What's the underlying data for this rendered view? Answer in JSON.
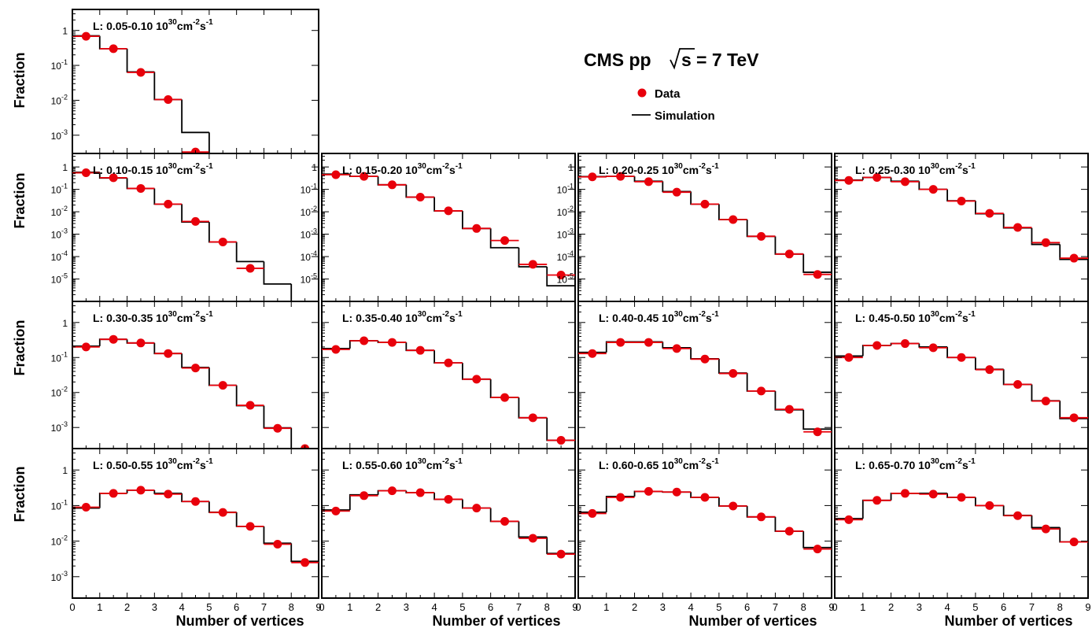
{
  "header": {
    "title_main": "CMS pp",
    "title_sqrt": "s",
    "title_energy": "= 7 TeV",
    "legend_data": "Data",
    "legend_sim": "Simulation"
  },
  "axes": {
    "ylabel": "Fraction",
    "xlabel": "Number of vertices",
    "x_ticks": [
      "0",
      "1",
      "2",
      "3",
      "4",
      "5",
      "6",
      "7",
      "8",
      "9"
    ]
  },
  "colors": {
    "data": "#e8000b",
    "simulation": "#000000"
  },
  "chart_data": [
    {
      "type": "histogram",
      "label": "0.05-0.10",
      "xlim": [
        0,
        9
      ],
      "ylim": [
        0.0003,
        4
      ],
      "ytick_labels": [
        "1",
        "10^-1",
        "10^-2",
        "10^-3"
      ],
      "data": [
        [
          0.5,
          0.68
        ],
        [
          1.5,
          0.3
        ],
        [
          2.5,
          0.063
        ],
        [
          3.5,
          0.0105
        ],
        [
          4.5,
          0.00033
        ]
      ],
      "simulation": [
        0.7,
        0.3,
        0.065,
        0.0105,
        0.0012,
        0,
        0,
        0,
        0
      ]
    },
    {
      "type": "histogram",
      "label": "0.10-0.15",
      "xlim": [
        0,
        9
      ],
      "ylim": [
        1e-06,
        4
      ],
      "ytick_labels": [
        "1",
        "10^-1",
        "10^-2",
        "10^-3",
        "10^-4",
        "10^-5"
      ],
      "data": [
        [
          0.5,
          0.55
        ],
        [
          1.5,
          0.33
        ],
        [
          2.5,
          0.11
        ],
        [
          3.5,
          0.022
        ],
        [
          4.5,
          0.0037
        ],
        [
          5.5,
          0.00045
        ],
        [
          6.5,
          3e-05
        ]
      ],
      "simulation": [
        0.58,
        0.32,
        0.11,
        0.022,
        0.0035,
        0.00045,
        6e-05,
        6e-06,
        0
      ]
    },
    {
      "type": "histogram",
      "label": "0.15-0.20",
      "xlim": [
        0,
        9
      ],
      "ylim": [
        1e-06,
        4
      ],
      "ytick_labels": [
        "1",
        "10^-1",
        "10^-2",
        "10^-3",
        "10^-4",
        "10^-5"
      ],
      "data": [
        [
          0.5,
          0.45
        ],
        [
          1.5,
          0.38
        ],
        [
          2.5,
          0.16
        ],
        [
          3.5,
          0.045
        ],
        [
          4.5,
          0.011
        ],
        [
          5.5,
          0.0018
        ],
        [
          6.5,
          0.00052
        ],
        [
          7.5,
          4.5e-05
        ],
        [
          8.5,
          1.5e-05
        ]
      ],
      "simulation": [
        0.48,
        0.38,
        0.16,
        0.045,
        0.011,
        0.0018,
        0.00025,
        3.5e-05,
        5e-06
      ]
    },
    {
      "type": "histogram",
      "label": "0.20-0.25",
      "xlim": [
        0,
        9
      ],
      "ylim": [
        1e-06,
        4
      ],
      "ytick_labels": [
        "1",
        "10^-1",
        "10^-2",
        "10^-3",
        "10^-4",
        "10^-5"
      ],
      "data": [
        [
          0.5,
          0.36
        ],
        [
          1.5,
          0.38
        ],
        [
          2.5,
          0.22
        ],
        [
          3.5,
          0.075
        ],
        [
          4.5,
          0.022
        ],
        [
          5.5,
          0.0045
        ],
        [
          6.5,
          0.0008
        ],
        [
          7.5,
          0.00013
        ],
        [
          8.5,
          1.6e-05
        ]
      ],
      "simulation": [
        0.37,
        0.38,
        0.23,
        0.08,
        0.022,
        0.0045,
        0.0008,
        0.00013,
        2e-05
      ]
    },
    {
      "type": "histogram",
      "label": "0.25-0.30",
      "xlim": [
        0,
        9
      ],
      "ylim": [
        1e-06,
        4
      ],
      "ytick_labels": [],
      "data": [
        [
          0.5,
          0.25
        ],
        [
          1.5,
          0.34
        ],
        [
          2.5,
          0.22
        ],
        [
          3.5,
          0.1
        ],
        [
          4.5,
          0.03
        ],
        [
          5.5,
          0.0085
        ],
        [
          6.5,
          0.002
        ],
        [
          7.5,
          0.00042
        ],
        [
          8.5,
          8.5e-05
        ]
      ],
      "simulation": [
        0.26,
        0.34,
        0.23,
        0.1,
        0.031,
        0.0082,
        0.0019,
        0.00035,
        7.5e-05
      ]
    },
    {
      "type": "histogram",
      "label": "0.30-0.35",
      "xlim": [
        0,
        9
      ],
      "ylim": [
        0.00025,
        4
      ],
      "ytick_labels": [
        "1",
        "10^-1",
        "10^-2",
        "10^-3"
      ],
      "data": [
        [
          0.5,
          0.2
        ],
        [
          1.5,
          0.33
        ],
        [
          2.5,
          0.26
        ],
        [
          3.5,
          0.13
        ],
        [
          4.5,
          0.05
        ],
        [
          5.5,
          0.016
        ],
        [
          6.5,
          0.0043
        ],
        [
          7.5,
          0.00095
        ],
        [
          8.5,
          0.00025
        ]
      ],
      "simulation": [
        0.21,
        0.33,
        0.26,
        0.13,
        0.052,
        0.016,
        0.0042,
        0.00098,
        0.00018
      ]
    },
    {
      "type": "histogram",
      "label": "0.35-0.40",
      "xlim": [
        0,
        9
      ],
      "ylim": [
        0.00025,
        4
      ],
      "ytick_labels": [],
      "data": [
        [
          0.5,
          0.17
        ],
        [
          1.5,
          0.3
        ],
        [
          2.5,
          0.27
        ],
        [
          3.5,
          0.16
        ],
        [
          4.5,
          0.07
        ],
        [
          5.5,
          0.024
        ],
        [
          6.5,
          0.0072
        ],
        [
          7.5,
          0.0019
        ],
        [
          8.5,
          0.00043
        ]
      ],
      "simulation": [
        0.18,
        0.3,
        0.27,
        0.16,
        0.07,
        0.024,
        0.0072,
        0.0019,
        0.00043
      ]
    },
    {
      "type": "histogram",
      "label": "0.40-0.45",
      "xlim": [
        0,
        9
      ],
      "ylim": [
        0.00025,
        4
      ],
      "ytick_labels": [],
      "data": [
        [
          0.5,
          0.13
        ],
        [
          1.5,
          0.27
        ],
        [
          2.5,
          0.27
        ],
        [
          3.5,
          0.18
        ],
        [
          4.5,
          0.09
        ],
        [
          5.5,
          0.035
        ],
        [
          6.5,
          0.011
        ],
        [
          7.5,
          0.0033
        ],
        [
          8.5,
          0.00075
        ]
      ],
      "simulation": [
        0.14,
        0.28,
        0.28,
        0.19,
        0.092,
        0.036,
        0.011,
        0.0032,
        0.0009
      ]
    },
    {
      "type": "histogram",
      "label": "0.45-0.50",
      "xlim": [
        0,
        9
      ],
      "ylim": [
        0.00025,
        4
      ],
      "ytick_labels": [],
      "data": [
        [
          0.5,
          0.1
        ],
        [
          1.5,
          0.22
        ],
        [
          2.5,
          0.25
        ],
        [
          3.5,
          0.19
        ],
        [
          4.5,
          0.1
        ],
        [
          5.5,
          0.045
        ],
        [
          6.5,
          0.017
        ],
        [
          7.5,
          0.0057
        ],
        [
          8.5,
          0.0019
        ]
      ],
      "simulation": [
        0.11,
        0.22,
        0.25,
        0.2,
        0.1,
        0.046,
        0.017,
        0.0058,
        0.0018
      ]
    },
    {
      "type": "histogram",
      "label": "0.50-0.55",
      "xlim": [
        0,
        9
      ],
      "ylim": [
        0.00025,
        4
      ],
      "ytick_labels": [
        "1",
        "10^-1",
        "10^-2",
        "10^-3"
      ],
      "data": [
        [
          0.5,
          0.09
        ],
        [
          1.5,
          0.22
        ],
        [
          2.5,
          0.27
        ],
        [
          3.5,
          0.21
        ],
        [
          4.5,
          0.13
        ],
        [
          5.5,
          0.064
        ],
        [
          6.5,
          0.026
        ],
        [
          7.5,
          0.0082
        ],
        [
          8.5,
          0.0025
        ]
      ],
      "simulation": [
        0.085,
        0.22,
        0.27,
        0.22,
        0.13,
        0.065,
        0.026,
        0.0087,
        0.0027
      ]
    },
    {
      "type": "histogram",
      "label": "0.55-0.60",
      "xlim": [
        0,
        9
      ],
      "ylim": [
        0.00025,
        4
      ],
      "ytick_labels": [],
      "data": [
        [
          0.5,
          0.07
        ],
        [
          1.5,
          0.19
        ],
        [
          2.5,
          0.26
        ],
        [
          3.5,
          0.23
        ],
        [
          4.5,
          0.15
        ],
        [
          5.5,
          0.085
        ],
        [
          6.5,
          0.036
        ],
        [
          7.5,
          0.012
        ],
        [
          8.5,
          0.0043
        ]
      ],
      "simulation": [
        0.075,
        0.2,
        0.26,
        0.23,
        0.15,
        0.085,
        0.036,
        0.013,
        0.0045
      ]
    },
    {
      "type": "histogram",
      "label": "0.60-0.65",
      "xlim": [
        0,
        9
      ],
      "ylim": [
        0.00025,
        4
      ],
      "ytick_labels": [],
      "data": [
        [
          0.5,
          0.06
        ],
        [
          1.5,
          0.17
        ],
        [
          2.5,
          0.25
        ],
        [
          3.5,
          0.24
        ],
        [
          4.5,
          0.17
        ],
        [
          5.5,
          0.097
        ],
        [
          6.5,
          0.048
        ],
        [
          7.5,
          0.019
        ],
        [
          8.5,
          0.006
        ]
      ],
      "simulation": [
        0.065,
        0.18,
        0.25,
        0.24,
        0.17,
        0.097,
        0.048,
        0.019,
        0.0066
      ]
    },
    {
      "type": "histogram",
      "label": "0.65-0.70",
      "xlim": [
        0,
        9
      ],
      "ylim": [
        0.00025,
        4
      ],
      "ytick_labels": [],
      "data": [
        [
          0.5,
          0.04
        ],
        [
          1.5,
          0.14
        ],
        [
          2.5,
          0.22
        ],
        [
          3.5,
          0.21
        ],
        [
          4.5,
          0.17
        ],
        [
          5.5,
          0.1
        ],
        [
          6.5,
          0.052
        ],
        [
          7.5,
          0.022
        ],
        [
          8.5,
          0.0095
        ]
      ],
      "simulation": [
        0.043,
        0.14,
        0.22,
        0.22,
        0.17,
        0.1,
        0.053,
        0.024,
        0.0095
      ]
    }
  ]
}
